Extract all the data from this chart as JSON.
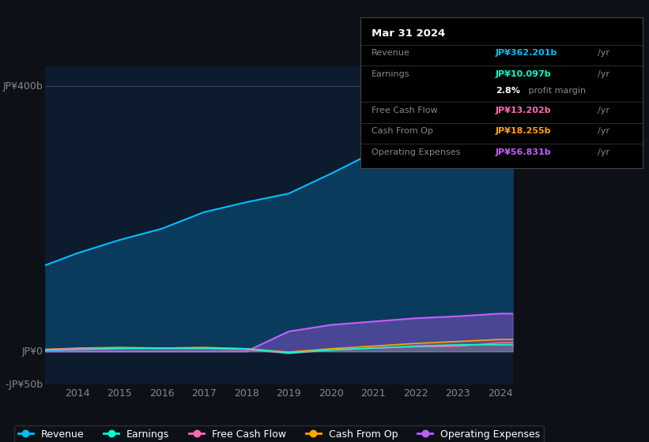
{
  "bg_color": "#0d1117",
  "plot_bg_color": "#0d1b2e",
  "ylabel_top": "JP¥400b",
  "ylabel_zero": "JP¥0",
  "ylabel_neg": "-JP¥50b",
  "years": [
    2013.25,
    2014,
    2015,
    2016,
    2017,
    2018,
    2019,
    2020,
    2021,
    2022,
    2023,
    2024,
    2024.3
  ],
  "revenue": [
    130,
    148,
    168,
    185,
    210,
    225,
    238,
    268,
    300,
    340,
    370,
    362,
    362
  ],
  "earnings": [
    2,
    3,
    4,
    5,
    5,
    4,
    -2,
    2,
    5,
    8,
    10,
    10,
    10
  ],
  "free_cash_flow": [
    3,
    4,
    5,
    4,
    4,
    3,
    -3,
    2,
    5,
    7,
    8,
    13,
    13
  ],
  "cash_from_op": [
    3,
    5,
    6,
    5,
    6,
    4,
    -1,
    4,
    8,
    12,
    15,
    18,
    18
  ],
  "operating_expenses": [
    0,
    0,
    0,
    0,
    0,
    0,
    30,
    40,
    45,
    50,
    53,
    57,
    57
  ],
  "revenue_color": "#00bfff",
  "earnings_color": "#00ffcc",
  "free_cash_flow_color": "#ff69b4",
  "cash_from_op_color": "#ffa500",
  "operating_expenses_color": "#bf5fff",
  "revenue_fill": "#0a3a5c",
  "info_box": {
    "date": "Mar 31 2024",
    "revenue_val": "JP¥362.201b",
    "earnings_val": "JP¥10.097b",
    "profit_margin": "2.8%",
    "free_cash_flow_val": "JP¥13.202b",
    "cash_from_op_val": "JP¥18.255b",
    "operating_expenses_val": "JP¥56.831b"
  },
  "x_ticks": [
    2014,
    2015,
    2016,
    2017,
    2018,
    2019,
    2020,
    2021,
    2022,
    2023,
    2024
  ],
  "ylim": [
    -50,
    430
  ],
  "gridline_y": [
    0,
    400
  ]
}
